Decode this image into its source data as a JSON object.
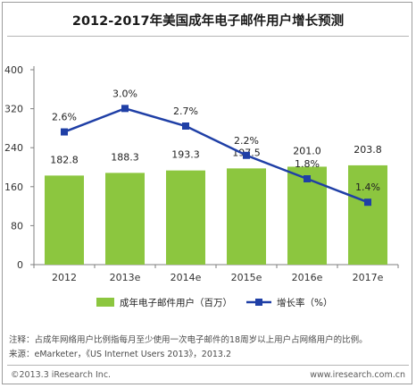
{
  "chart_data": {
    "type": "bar",
    "title": "2012-2017年美国成年电子邮件用户增长预测",
    "categories": [
      "2012",
      "2013e",
      "2014e",
      "2015e",
      "2016e",
      "2017e"
    ],
    "series": [
      {
        "name": "成年电子邮件用户（百万）",
        "type": "bar",
        "color": "#8cc63f",
        "values": [
          182.8,
          188.3,
          193.3,
          197.5,
          201.0,
          203.8
        ],
        "labels": [
          "182.8",
          "188.3",
          "193.3",
          "197.5",
          "201.0",
          "203.8"
        ]
      },
      {
        "name": "增长率（%）",
        "type": "line",
        "color": "#1f3fa6",
        "values": [
          2.6,
          3.0,
          2.7,
          2.2,
          1.8,
          1.4
        ],
        "labels": [
          "2.6%",
          "3.0%",
          "2.7%",
          "2.2%",
          "1.8%",
          "1.4%"
        ]
      }
    ],
    "y_axis": {
      "min": 0,
      "max": 400,
      "ticks": [
        "0",
        "80",
        "160",
        "240",
        "320",
        "400"
      ]
    },
    "line_value_range": [
      0,
      3.6
    ],
    "grid": false,
    "legend_position": "bottom"
  },
  "notes": {
    "note": "注释：占成年网络用户比例指每月至少使用一次电子邮件的18周岁以上用户占网络用户的比例。",
    "source": "来源：eMarketer，《US Internet Users 2013》，2013.2"
  },
  "footer": {
    "copyright": "©2013.3 iResearch Inc.",
    "website": "www.iresearch.com.cn"
  }
}
